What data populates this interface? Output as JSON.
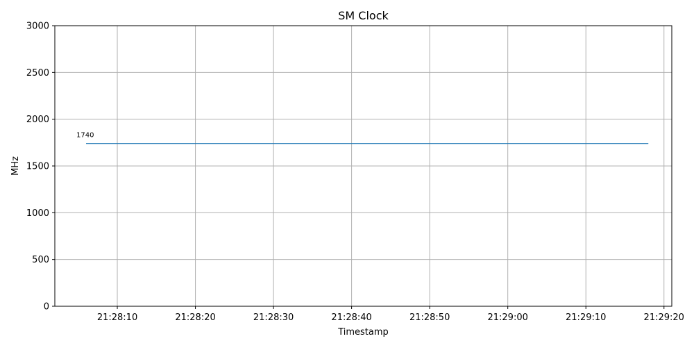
{
  "chart_data": {
    "type": "line",
    "title": "SM Clock",
    "xlabel": "Timestamp",
    "ylabel": "MHz",
    "x_tick_labels": [
      "21:28:10",
      "21:28:20",
      "21:28:30",
      "21:28:40",
      "21:28:50",
      "21:29:00",
      "21:29:10",
      "21:29:20"
    ],
    "y_tick_labels": [
      "0",
      "500",
      "1000",
      "1500",
      "2000",
      "2500",
      "3000"
    ],
    "ylim": [
      0,
      3000
    ],
    "xlim": [
      "21:28:02",
      "21:29:21"
    ],
    "grid": true,
    "series": [
      {
        "color": "#1f77b4",
        "x": [
          "21:28:06",
          "21:29:18"
        ],
        "y": [
          1740,
          1740
        ]
      }
    ],
    "annotations": [
      {
        "text": "1740",
        "x": "21:28:06",
        "y": 1740
      }
    ]
  }
}
